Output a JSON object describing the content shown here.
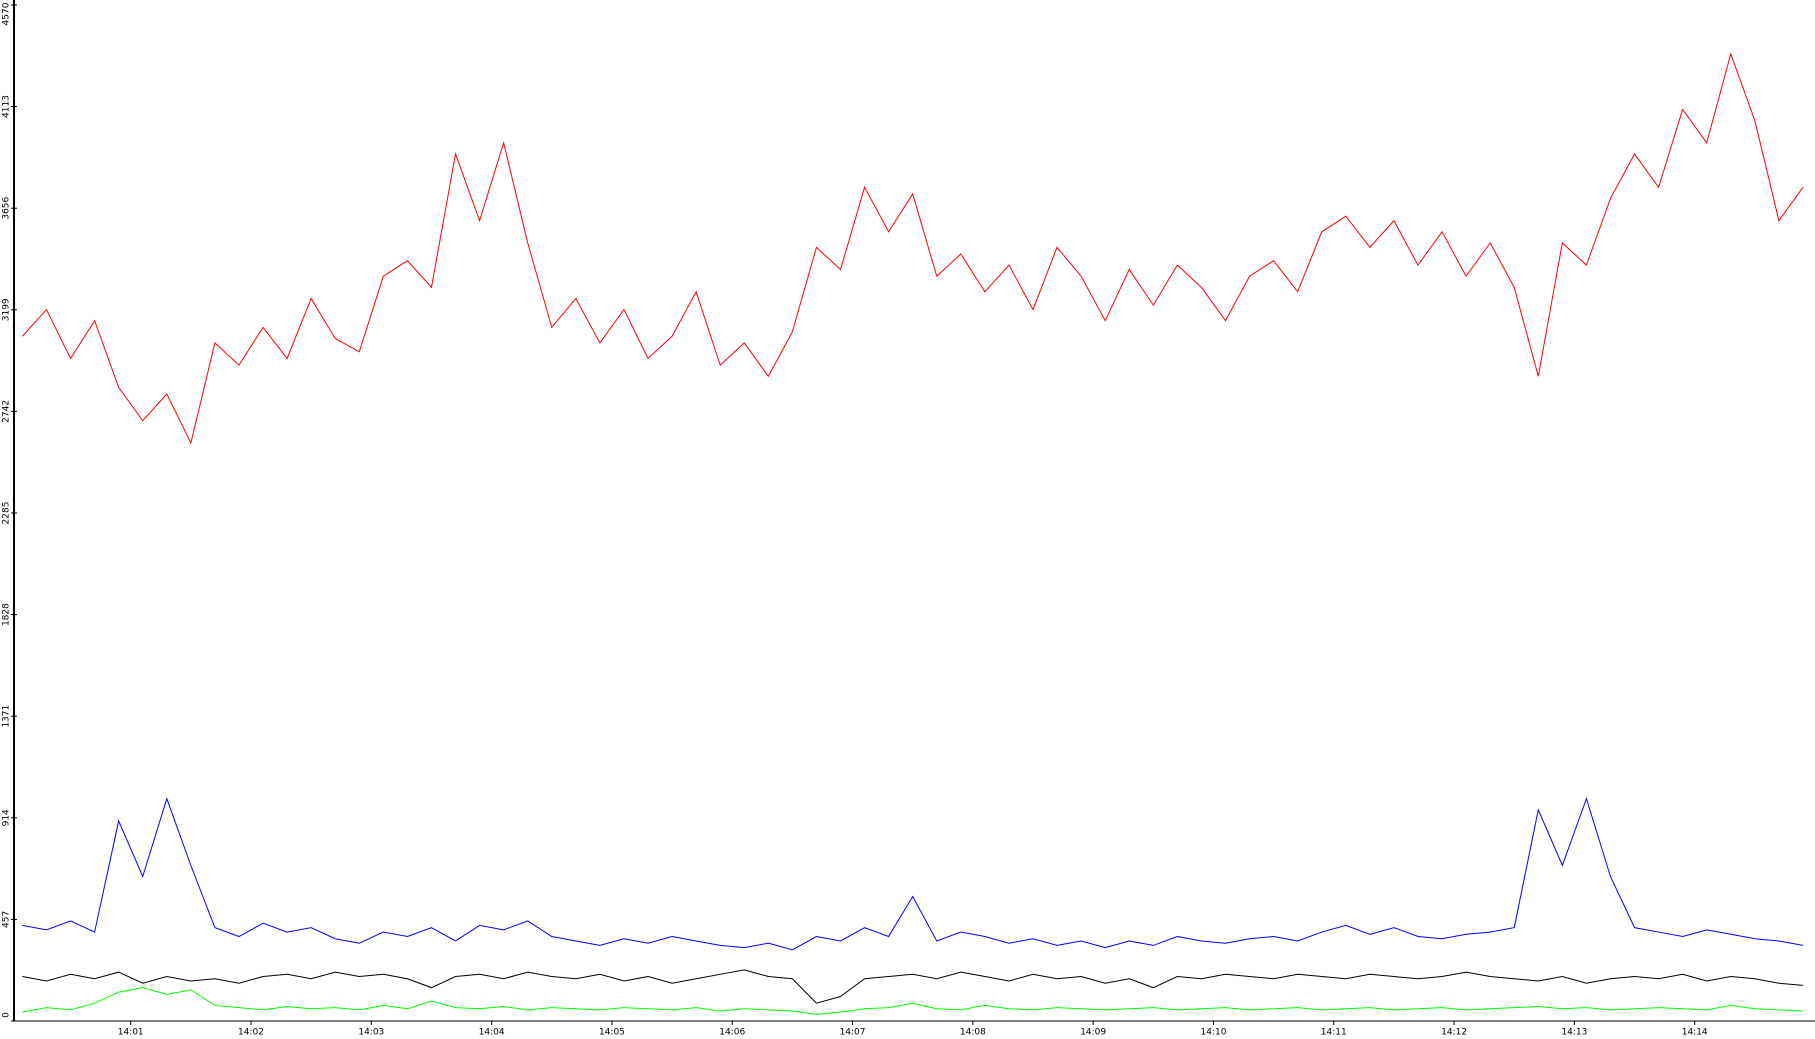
{
  "chart_data": {
    "type": "line",
    "x": [
      0.1,
      0.3,
      0.5,
      0.7,
      0.9,
      1.1,
      1.3,
      1.5,
      1.7,
      1.9,
      2.1,
      2.3,
      2.5,
      2.7,
      2.9,
      3.1,
      3.3,
      3.5,
      3.7,
      3.9,
      4.1,
      4.3,
      4.5,
      4.7,
      4.9,
      5.1,
      5.3,
      5.5,
      5.7,
      5.9,
      6.1,
      6.3,
      6.5,
      6.7,
      6.9,
      7.1,
      7.3,
      7.5,
      7.7,
      7.9,
      8.1,
      8.3,
      8.5,
      8.7,
      8.9,
      9.1,
      9.3,
      9.5,
      9.7,
      9.9,
      10.1,
      10.3,
      10.5,
      10.7,
      10.9,
      11.1,
      11.3,
      11.5,
      11.7,
      11.9,
      12.1,
      12.3,
      12.5,
      12.7,
      12.9,
      13.1,
      13.3,
      13.5,
      13.7,
      13.9,
      14.1,
      14.3,
      14.5,
      14.7,
      14.9
    ],
    "series": [
      {
        "color": "#ff0000",
        "values": [
          3080,
          3200,
          2980,
          3150,
          2850,
          2700,
          2820,
          2600,
          3050,
          2950,
          3120,
          2980,
          3250,
          3070,
          3010,
          3350,
          3420,
          3300,
          3900,
          3600,
          3950,
          3500,
          3120,
          3250,
          3050,
          3200,
          2980,
          3080,
          3280,
          2950,
          3050,
          2900,
          3100,
          3480,
          3380,
          3750,
          3550,
          3720,
          3350,
          3450,
          3280,
          3400,
          3200,
          3480,
          3350,
          3150,
          3380,
          3220,
          3400,
          3300,
          3150,
          3350,
          3420,
          3280,
          3550,
          3620,
          3480,
          3600,
          3400,
          3550,
          3350,
          3500,
          3300,
          2900,
          3500,
          3400,
          3700,
          3900,
          3750,
          4100,
          3950,
          4350,
          4050,
          3600,
          3750
        ]
      },
      {
        "color": "#0000ff",
        "values": [
          430,
          410,
          450,
          400,
          900,
          650,
          1000,
          700,
          420,
          380,
          440,
          400,
          420,
          370,
          350,
          400,
          380,
          420,
          360,
          430,
          410,
          450,
          380,
          360,
          340,
          370,
          350,
          380,
          360,
          340,
          330,
          350,
          320,
          380,
          360,
          420,
          380,
          560,
          360,
          400,
          380,
          350,
          370,
          340,
          360,
          330,
          360,
          340,
          380,
          360,
          350,
          370,
          380,
          360,
          400,
          430,
          390,
          420,
          380,
          370,
          390,
          400,
          420,
          950,
          700,
          1000,
          650,
          420,
          400,
          380,
          410,
          390,
          370,
          360,
          340
        ]
      },
      {
        "color": "#000000",
        "values": [
          200,
          180,
          210,
          190,
          220,
          170,
          200,
          180,
          190,
          170,
          200,
          210,
          190,
          220,
          200,
          210,
          190,
          150,
          200,
          210,
          190,
          220,
          200,
          190,
          210,
          180,
          200,
          170,
          190,
          210,
          230,
          200,
          190,
          80,
          110,
          190,
          200,
          210,
          190,
          220,
          200,
          180,
          210,
          190,
          200,
          170,
          190,
          150,
          200,
          190,
          210,
          200,
          190,
          210,
          200,
          190,
          210,
          200,
          190,
          200,
          220,
          200,
          190,
          180,
          200,
          170,
          190,
          200,
          190,
          210,
          180,
          200,
          190,
          170,
          160
        ]
      },
      {
        "color": "#00ff00",
        "values": [
          40,
          60,
          50,
          80,
          130,
          150,
          120,
          140,
          70,
          60,
          50,
          65,
          55,
          60,
          50,
          70,
          55,
          90,
          60,
          55,
          65,
          50,
          60,
          55,
          50,
          60,
          55,
          50,
          60,
          45,
          55,
          50,
          45,
          30,
          40,
          55,
          60,
          80,
          55,
          50,
          70,
          55,
          50,
          60,
          55,
          50,
          55,
          60,
          50,
          55,
          60,
          50,
          55,
          60,
          50,
          55,
          60,
          50,
          55,
          60,
          50,
          55,
          60,
          65,
          55,
          60,
          50,
          55,
          60,
          55,
          50,
          70,
          55,
          50,
          45
        ]
      }
    ],
    "xlim": [
      0.03,
      15.0
    ],
    "xticks": [
      {
        "value": 1,
        "label": "14:01"
      },
      {
        "value": 2,
        "label": "14:02"
      },
      {
        "value": 3,
        "label": "14:03"
      },
      {
        "value": 4,
        "label": "14:04"
      },
      {
        "value": 5,
        "label": "14:05"
      },
      {
        "value": 6,
        "label": "14:06"
      },
      {
        "value": 7,
        "label": "14:07"
      },
      {
        "value": 8,
        "label": "14:08"
      },
      {
        "value": 9,
        "label": "14:09"
      },
      {
        "value": 10,
        "label": "14:10"
      },
      {
        "value": 11,
        "label": "14:11"
      },
      {
        "value": 12,
        "label": "14:12"
      },
      {
        "value": 13,
        "label": "14:13"
      },
      {
        "value": 14,
        "label": "14:14"
      }
    ],
    "ylim": [
      0,
      4570
    ],
    "yticks": [
      0,
      457,
      914,
      1371,
      1828,
      2285,
      2742,
      3199,
      3656,
      4113,
      4570
    ]
  }
}
